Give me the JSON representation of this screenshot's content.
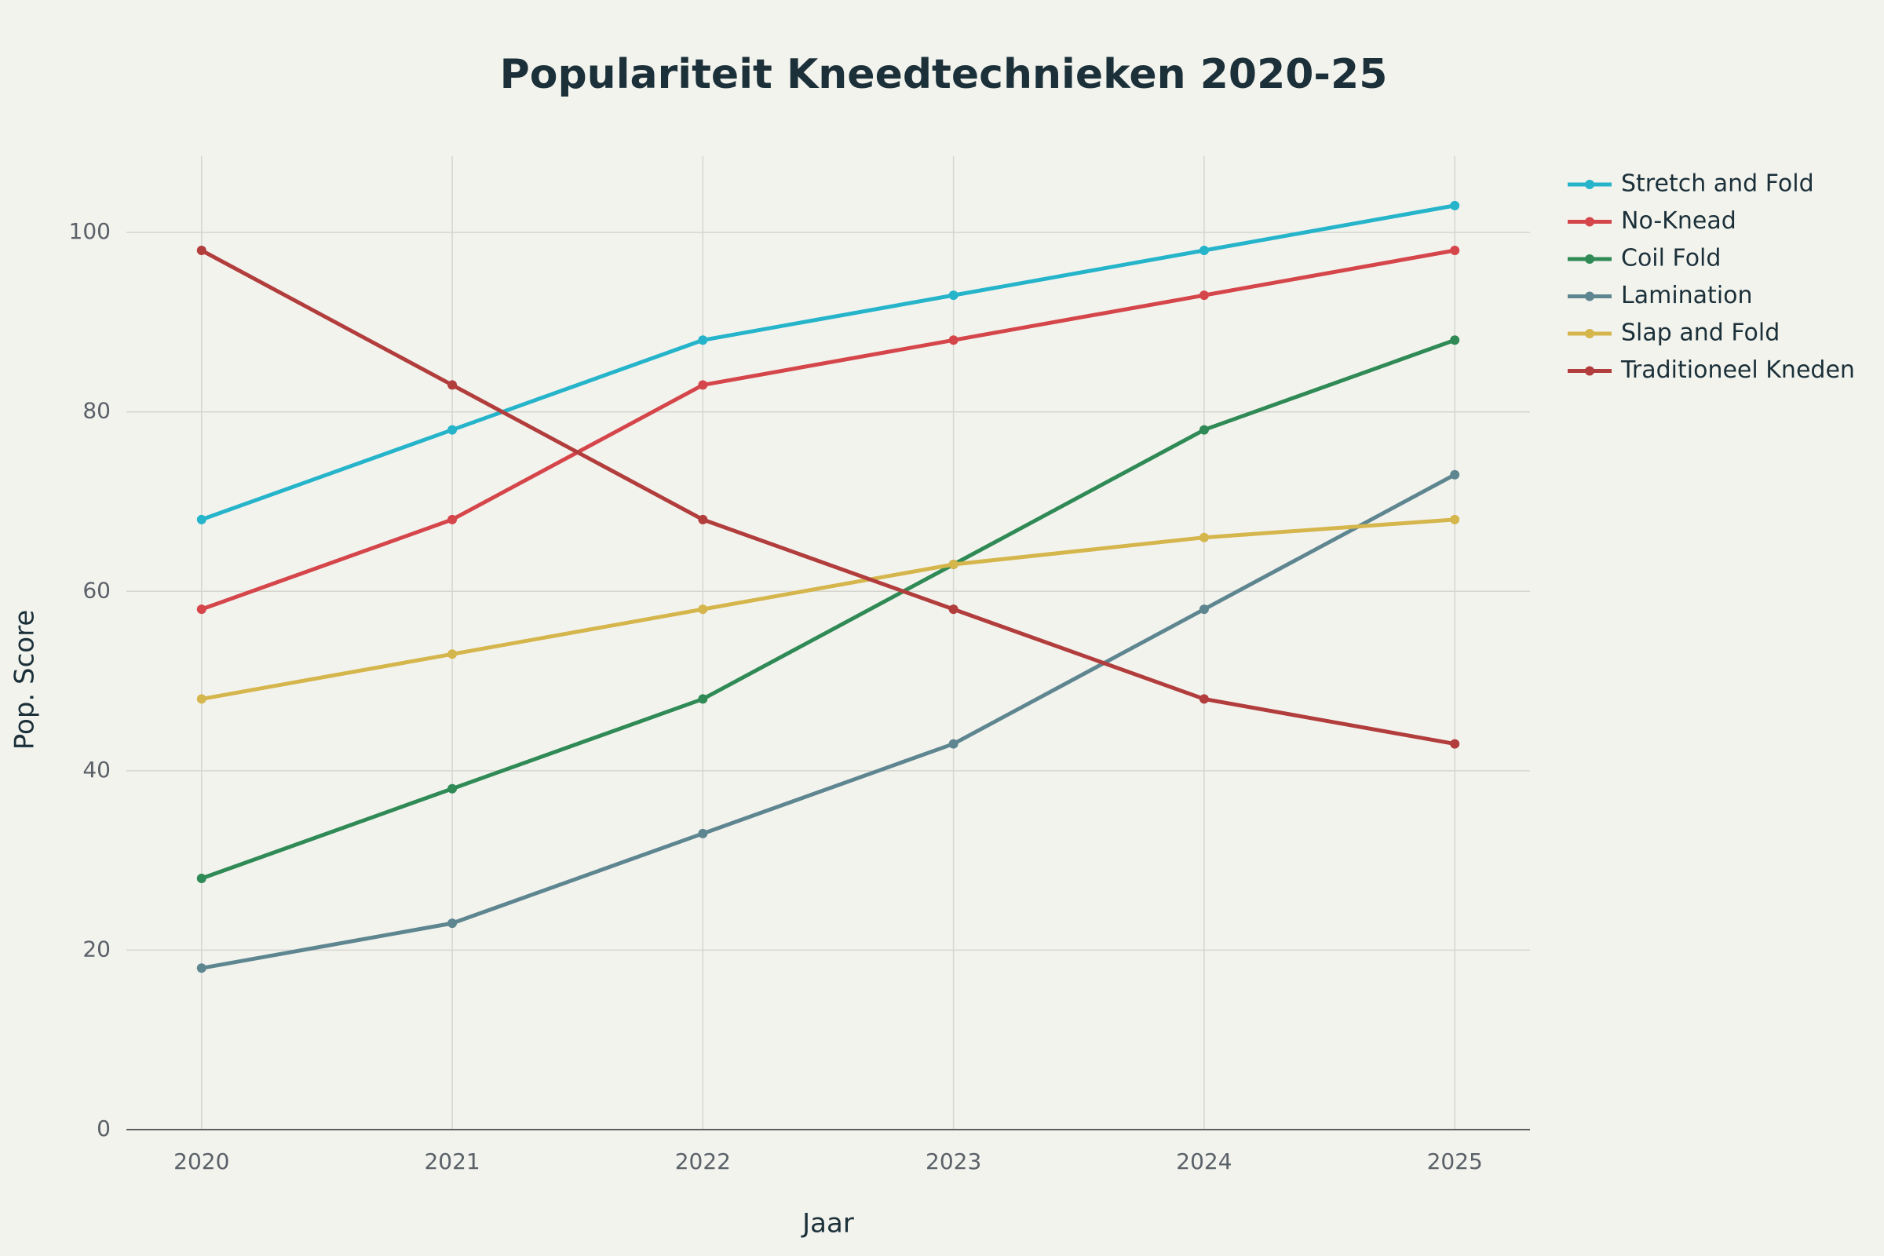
{
  "chart_data": {
    "type": "line",
    "title": "Populariteit Kneedtechnieken 2020-25",
    "x_label": "Jaar",
    "y_label": "Pop. Score",
    "x": [
      2020,
      2021,
      2022,
      2023,
      2024,
      2025
    ],
    "xlim": [
      2019.7,
      2025.3
    ],
    "xticks": [
      2020,
      2021,
      2022,
      2023,
      2024,
      2025
    ],
    "ylim": [
      0,
      108.5
    ],
    "yticks": [
      0,
      20,
      40,
      60,
      80,
      100
    ],
    "grid": true,
    "legend": "right",
    "series": [
      {
        "name": "Stretch and Fold",
        "color": "#25b4ca",
        "values": [
          68,
          78,
          88,
          93,
          98,
          103
        ]
      },
      {
        "name": "No-Knead",
        "color": "#d5464b",
        "values": [
          58,
          68,
          83,
          88,
          93,
          98
        ]
      },
      {
        "name": "Coil Fold",
        "color": "#2f8a55",
        "values": [
          28,
          38,
          48,
          63,
          78,
          88
        ]
      },
      {
        "name": "Lamination",
        "color": "#5e8690",
        "values": [
          18,
          23,
          33,
          43,
          58,
          73
        ]
      },
      {
        "name": "Slap and Fold",
        "color": "#d5b64c",
        "values": [
          48,
          53,
          58,
          63,
          66,
          68
        ]
      },
      {
        "name": "Traditioneel Kneden",
        "color": "#b13d3c",
        "values": [
          98,
          83,
          68,
          58,
          48,
          43
        ]
      }
    ]
  }
}
